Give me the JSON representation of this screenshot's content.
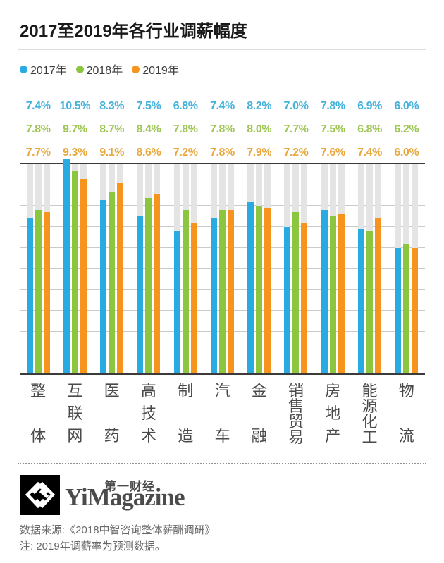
{
  "title": "2017至2019年各行业调薪幅度",
  "chart_data": {
    "type": "bar",
    "title": "2017至2019年各行业调薪幅度",
    "categories": [
      "整体",
      "互联网",
      "医药",
      "高技术",
      "制造",
      "汽车",
      "金融",
      "销售贸易",
      "房地产",
      "能源化工",
      "物流"
    ],
    "series": [
      {
        "name": "2017年",
        "color": "#29ABE2",
        "label_color": "#45B2DC",
        "values": [
          7.4,
          10.5,
          8.3,
          7.5,
          6.8,
          7.4,
          8.2,
          7.0,
          7.8,
          6.9,
          6.0
        ]
      },
      {
        "name": "2018年",
        "color": "#8CC63F",
        "label_color": "#9FC655",
        "values": [
          7.8,
          9.7,
          8.7,
          8.4,
          7.8,
          7.8,
          8.0,
          7.7,
          7.5,
          6.8,
          6.2
        ]
      },
      {
        "name": "2019年",
        "color": "#F7941E",
        "label_color": "#E9A83E",
        "values": [
          7.7,
          9.3,
          9.1,
          8.6,
          7.2,
          7.8,
          7.9,
          7.2,
          7.6,
          7.4,
          6.0
        ]
      }
    ],
    "value_suffix": "%",
    "ylim": [
      0,
      10
    ],
    "grid_interval_pct": 1,
    "grid": true,
    "legend_position": "top",
    "track_color": "#E4E4E4",
    "grid_color": "#CACACA",
    "axis_color": "#3B3B3B"
  },
  "footer": {
    "brand_cn": "第一财经",
    "brand_en": "YiMagazine",
    "source": "数据来源:《2018中智咨询整体薪酬调研》",
    "note": "注: 2019年调薪率为预测数据。"
  }
}
